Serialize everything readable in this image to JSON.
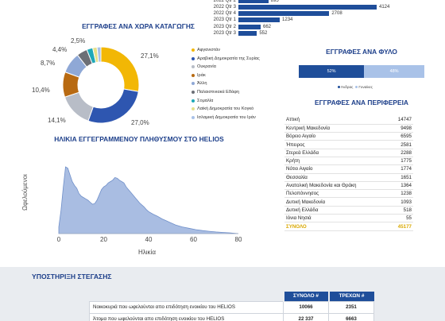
{
  "quarter_bars": {
    "rows": [
      {
        "label": "2022 Qtr 2",
        "value": "895",
        "fraction": 0.217
      },
      {
        "label": "2022 Qtr 3",
        "value": "4124",
        "fraction": 1.0
      },
      {
        "label": "2022 Qtr 4",
        "value": "2708",
        "fraction": 0.657
      },
      {
        "label": "2023 Qtr 1",
        "value": "1234",
        "fraction": 0.299
      },
      {
        "label": "2023 Qtr 2",
        "value": "662",
        "fraction": 0.161
      },
      {
        "label": "2023 Qtr 3",
        "value": "552",
        "fraction": 0.134
      }
    ]
  },
  "country": {
    "title": "ΕΓΓΡΑΦΕΣ ΑΝΑ ΧΩΡΑ ΚΑΤΑΓΩΓΗΣ",
    "labels": {
      "a": "27,1%",
      "b": "27,0%",
      "c": "14,1%",
      "d": "10,4%",
      "e": "8,7%",
      "f": "4,4%",
      "g": "2,5%"
    },
    "legend": [
      {
        "label": "Αφγανιστάν",
        "color": "#f2b705"
      },
      {
        "label": "Αραβική Δημοκρατία της Συρίας",
        "color": "#2e56b0"
      },
      {
        "label": "Ουκρανία",
        "color": "#b8bdc7"
      },
      {
        "label": "Ιράκ",
        "color": "#b86a12"
      },
      {
        "label": "Άλλη",
        "color": "#8fa8d6"
      },
      {
        "label": "Παλαιστινιακά Εδάφη",
        "color": "#6c6f76"
      },
      {
        "label": "Σομαλία",
        "color": "#1fa8b8"
      },
      {
        "label": "Λαϊκή Δημοκρατία του Κογκό",
        "color": "#e6e08a"
      },
      {
        "label": "Ισλαμική Δημοκρατία του Ιράν",
        "color": "#a9c2e8"
      }
    ],
    "shares": [
      27.1,
      27.0,
      14.1,
      10.4,
      8.7,
      4.4,
      2.5,
      1.8,
      1.6
    ]
  },
  "age": {
    "title": "ΗΛΙΚΙΑ ΕΓΓΕΓΡΑΜΜΕΝΟΥ ΠΛΗΘΥΣΜΟΥ ΣΤΟ HELIOS",
    "ylabel": "Ωφελούμενοι",
    "xlabel": "Ηλικία",
    "ticks": [
      "0",
      "20",
      "40",
      "60",
      "80"
    ]
  },
  "chart_data": {
    "type": "area",
    "title": "ΗΛΙΚΙΑ ΕΓΓΕΓΡΑΜΜΕΝΟΥ ΠΛΗΘΥΣΜΟΥ ΣΤΟ HELIOS",
    "xlabel": "Ηλικία",
    "ylabel": "Ωφελούμενοι",
    "xlim": [
      0,
      80
    ],
    "x": [
      0,
      1,
      2,
      3,
      4,
      5,
      6,
      7,
      8,
      9,
      10,
      11,
      12,
      13,
      14,
      15,
      16,
      17,
      18,
      19,
      20,
      21,
      22,
      23,
      24,
      25,
      26,
      27,
      28,
      29,
      30,
      31,
      32,
      33,
      34,
      35,
      36,
      37,
      38,
      39,
      40,
      42,
      44,
      46,
      48,
      50,
      52,
      55,
      58,
      61,
      64,
      67,
      70,
      73,
      76,
      80
    ],
    "y": [
      0.1,
      0.35,
      0.7,
      1.0,
      0.98,
      0.88,
      0.78,
      0.72,
      0.68,
      0.6,
      0.56,
      0.54,
      0.52,
      0.5,
      0.47,
      0.44,
      0.45,
      0.5,
      0.58,
      0.66,
      0.7,
      0.72,
      0.76,
      0.78,
      0.8,
      0.84,
      0.83,
      0.8,
      0.78,
      0.76,
      0.7,
      0.66,
      0.62,
      0.58,
      0.54,
      0.5,
      0.46,
      0.43,
      0.4,
      0.36,
      0.33,
      0.29,
      0.26,
      0.22,
      0.19,
      0.16,
      0.13,
      0.1,
      0.08,
      0.06,
      0.045,
      0.035,
      0.025,
      0.018,
      0.012,
      0.0
    ]
  },
  "gender": {
    "title": "ΕΓΓΡΑΦΕΣ ΑΝΑ ΦΥΛΟ",
    "male_pct": "52%",
    "female_pct": "48%",
    "male_fraction": 0.52,
    "legend_male": "Άνδρας",
    "legend_female": "Γυναίκες",
    "male_color": "#1f4e9a",
    "female_color": "#a9c2e8"
  },
  "regions": {
    "title": "ΕΓΓΡΑΦΕΣ ΑΝΑ ΠΕΡΙΦΕΡΕΙΑ",
    "rows": [
      {
        "name": "Αττική",
        "value": "14747"
      },
      {
        "name": "Κεντρική Μακεδονία",
        "value": "9498"
      },
      {
        "name": "Βόρειο Αιγαίο",
        "value": "6595"
      },
      {
        "name": "Ήπειρος",
        "value": "2581"
      },
      {
        "name": "Στερεά Ελλάδα",
        "value": "2288"
      },
      {
        "name": "Κρήτη",
        "value": "1775"
      },
      {
        "name": "Νότιο Αιγαίο",
        "value": "1774"
      },
      {
        "name": "Θεσσαλία",
        "value": "1651"
      },
      {
        "name": "Ανατολική Μακεδονία και Θράκη",
        "value": "1364"
      },
      {
        "name": "Πελοπόννησος",
        "value": "1238"
      },
      {
        "name": "Δυτική Μακεδονία",
        "value": "1093"
      },
      {
        "name": "Δυτική Ελλάδα",
        "value": "518"
      },
      {
        "name": "Ιόνια Νησιά",
        "value": "55"
      }
    ],
    "total_label": "ΣΥΝΟΛΟ",
    "total_value": "45177"
  },
  "support": {
    "title": "ΥΠΟΣΤΗΡΙΞΗ ΣΤΕΓΑΣΗΣ",
    "col_total": "ΣΥΝΟΛΟ #",
    "col_current": "ΤΡΕΧΩΝ #",
    "rows": [
      {
        "label": "Νοικοκυριά που ωφελούνται απο επιδότηση ενοικίου του HELIOS",
        "total": "10066",
        "current": "2351"
      },
      {
        "label": "Άτομα που ωφελούνται απο επιδότηση ενοικίου του HELIOS",
        "total": "22 337",
        "current": "6663"
      }
    ]
  }
}
